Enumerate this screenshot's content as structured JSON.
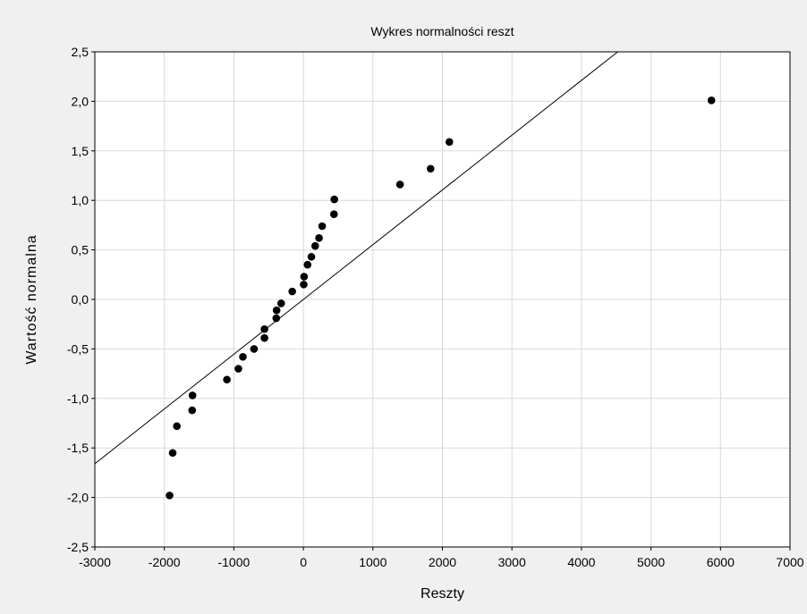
{
  "chart_data": {
    "type": "scatter",
    "title": "Wykres normalności reszt",
    "xlabel": "Reszty",
    "ylabel": "Wartość normalna",
    "xlim": [
      -3000,
      7000
    ],
    "ylim": [
      -2.5,
      2.5
    ],
    "x_ticks": [
      -3000,
      -2000,
      -1000,
      0,
      1000,
      2000,
      3000,
      4000,
      5000,
      6000,
      7000
    ],
    "y_ticks": [
      2.5,
      2.0,
      1.5,
      1.0,
      0.5,
      0.0,
      -0.5,
      -1.0,
      -1.5,
      -2.0,
      -2.5
    ],
    "x_tick_labels": [
      "-3000",
      "-2000",
      "-1000",
      "0",
      "1000",
      "2000",
      "3000",
      "4000",
      "5000",
      "6000",
      "7000"
    ],
    "y_tick_labels": [
      "2,5",
      "2,0",
      "1,5",
      "1,0",
      "0,5",
      "0,0",
      "-0,5",
      "-1,0",
      "-1,5",
      "-2,0",
      "-2,5"
    ],
    "grid": true,
    "points": [
      {
        "x": -1925,
        "y": -1.98
      },
      {
        "x": -1880,
        "y": -1.55
      },
      {
        "x": -1820,
        "y": -1.28
      },
      {
        "x": -1600,
        "y": -1.12
      },
      {
        "x": -1595,
        "y": -0.97
      },
      {
        "x": -1100,
        "y": -0.81
      },
      {
        "x": -935,
        "y": -0.7
      },
      {
        "x": -870,
        "y": -0.58
      },
      {
        "x": -710,
        "y": -0.5
      },
      {
        "x": -560,
        "y": -0.39
      },
      {
        "x": -560,
        "y": -0.3
      },
      {
        "x": -390,
        "y": -0.19
      },
      {
        "x": -385,
        "y": -0.11
      },
      {
        "x": -320,
        "y": -0.04
      },
      {
        "x": -160,
        "y": 0.08
      },
      {
        "x": 5,
        "y": 0.15
      },
      {
        "x": 10,
        "y": 0.23
      },
      {
        "x": 60,
        "y": 0.35
      },
      {
        "x": 115,
        "y": 0.43
      },
      {
        "x": 170,
        "y": 0.54
      },
      {
        "x": 225,
        "y": 0.62
      },
      {
        "x": 270,
        "y": 0.74
      },
      {
        "x": 440,
        "y": 0.86
      },
      {
        "x": 445,
        "y": 1.01
      },
      {
        "x": 1390,
        "y": 1.16
      },
      {
        "x": 1830,
        "y": 1.32
      },
      {
        "x": 2100,
        "y": 1.59
      },
      {
        "x": 5870,
        "y": 2.01
      }
    ],
    "fit_line": {
      "slope": 0.000553,
      "intercept": -0.0003
    }
  },
  "colors": {
    "background": "#f0f0f0",
    "plot_area": "#ffffff",
    "grid": "#d9d9d9",
    "marker": "#000000",
    "line": "#000000"
  }
}
